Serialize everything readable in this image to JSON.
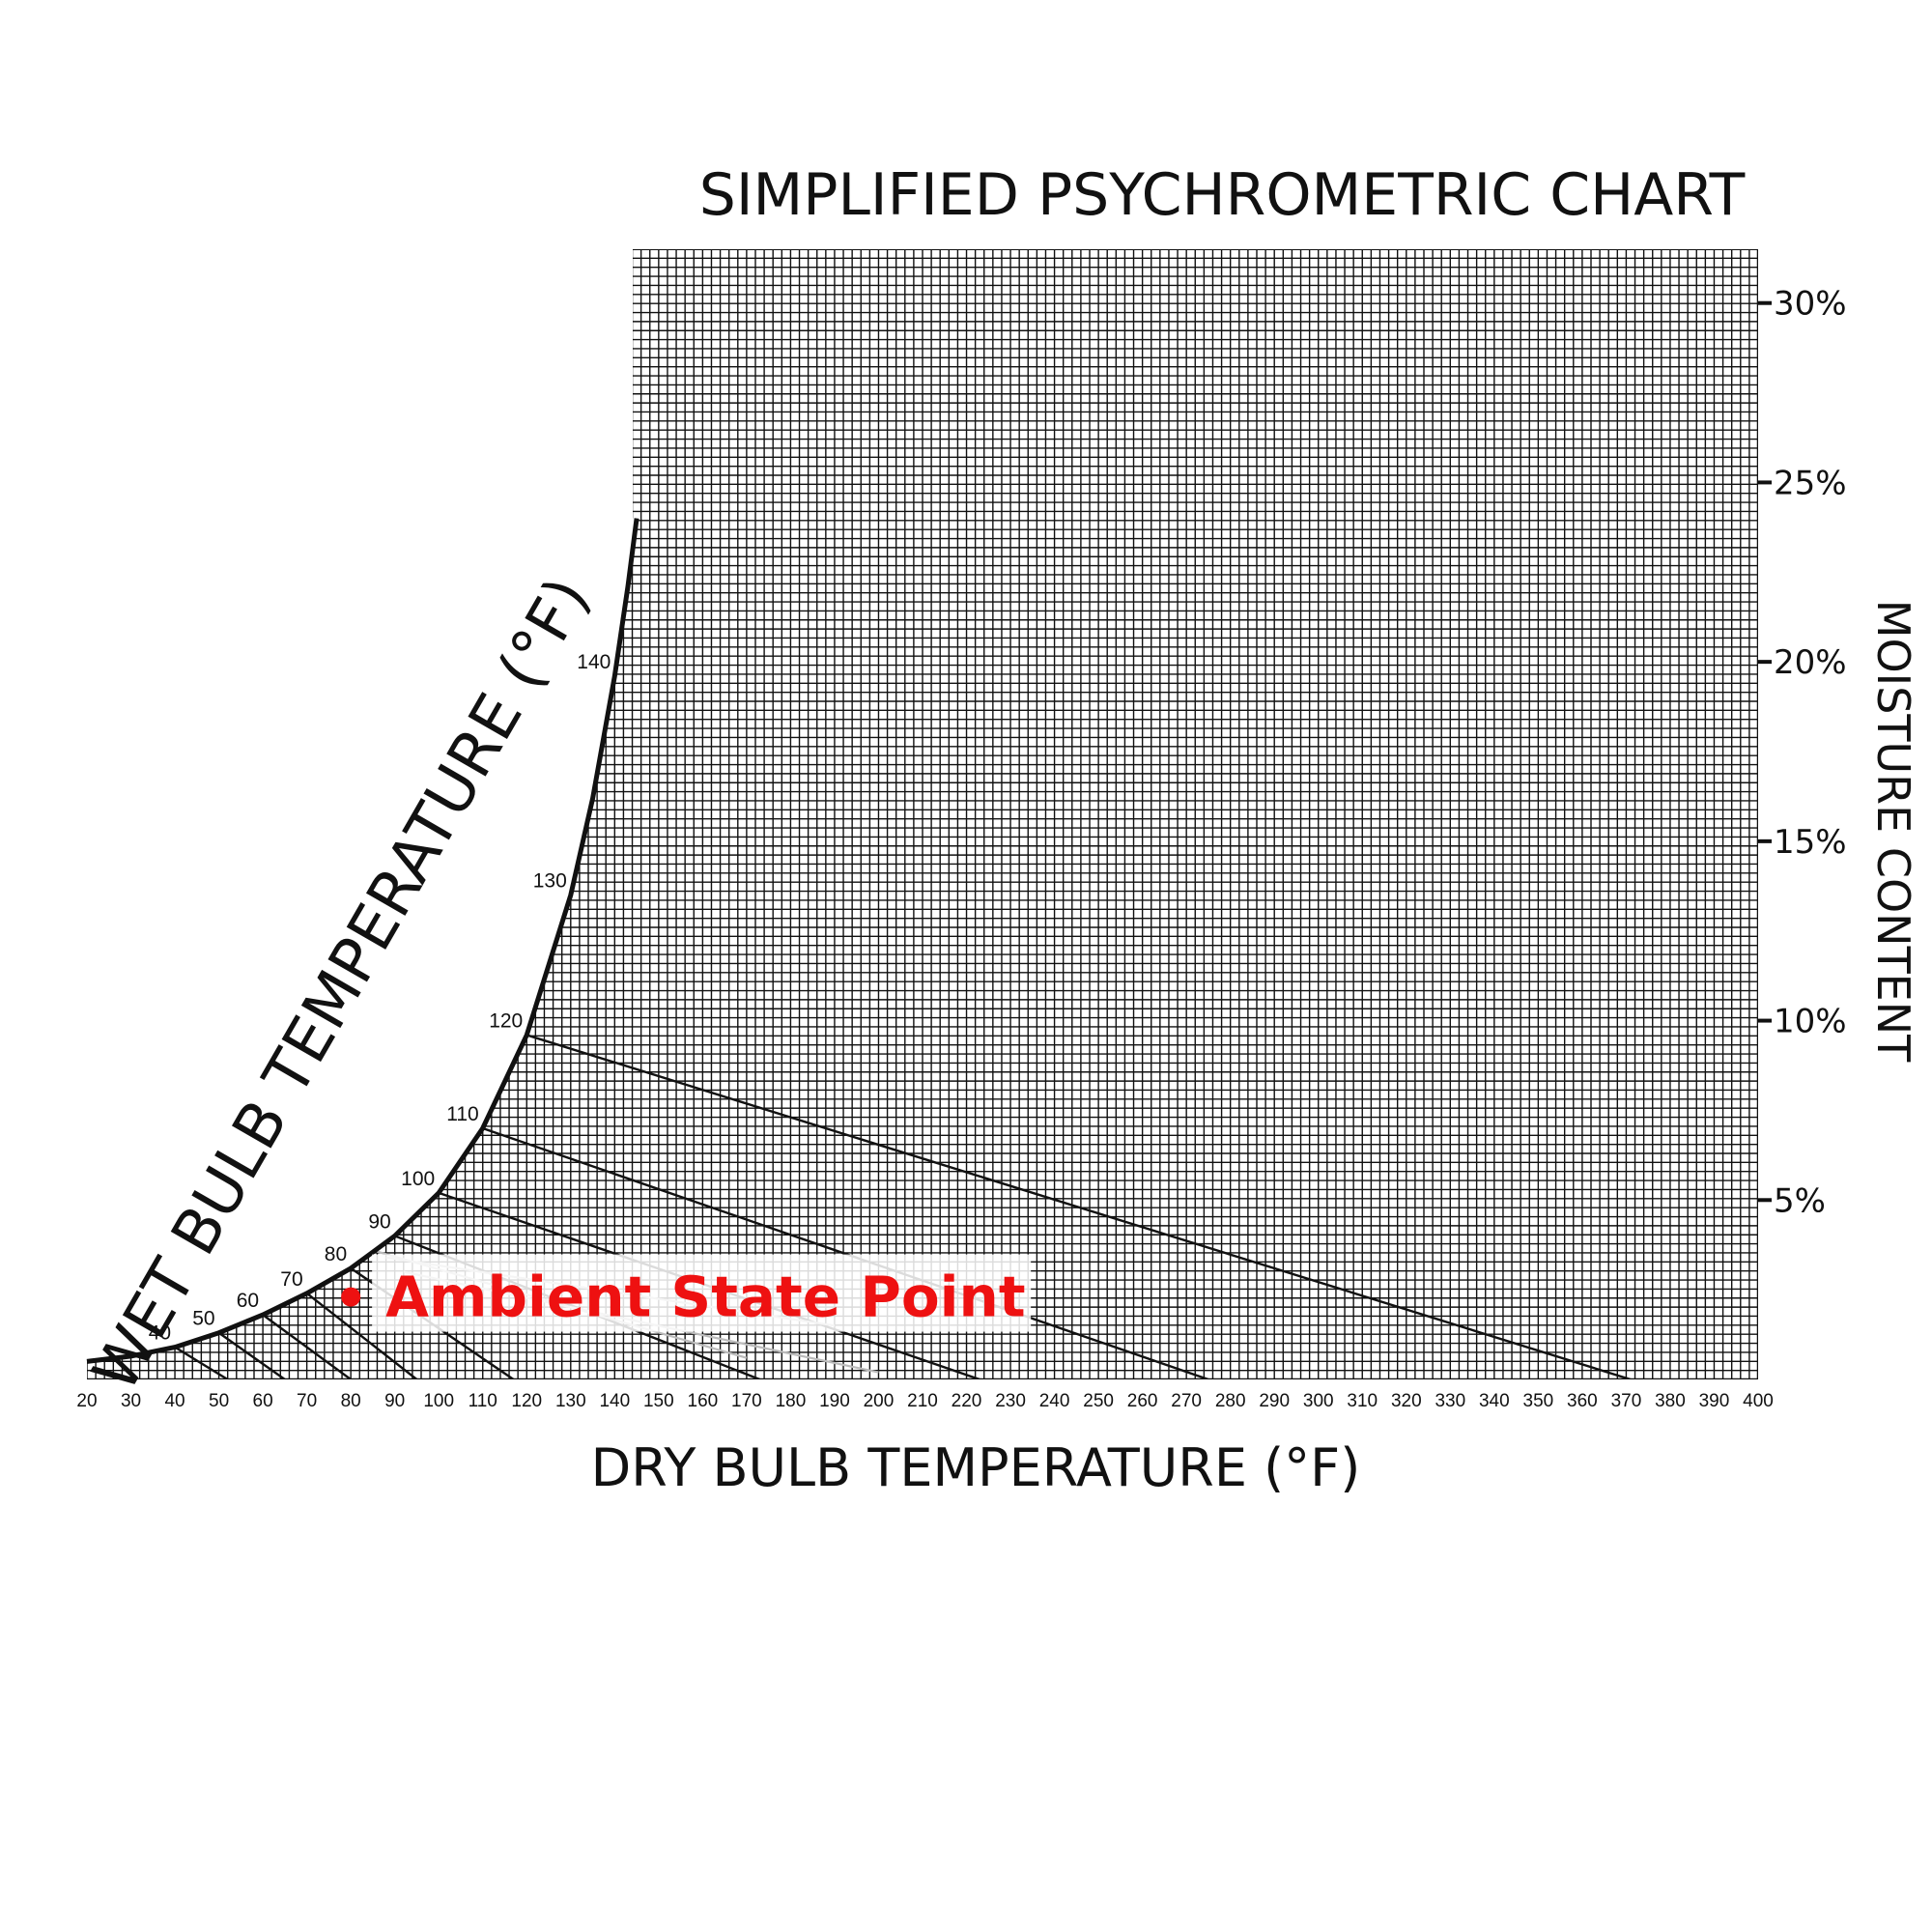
{
  "chart_data": {
    "type": "line",
    "title": "SIMPLIFIED PSYCHROMETRIC CHART",
    "xlabel": "DRY BULB TEMPERATURE (°F)",
    "ylabel": "MOISTURE CONTENT",
    "curve_label": "WET BULB TEMPERATURE (°F)",
    "xlim": [
      20,
      400
    ],
    "ylim": [
      0,
      31.5
    ],
    "grid": true,
    "x_ticks": [
      "20",
      "30",
      "40",
      "50",
      "60",
      "70",
      "80",
      "90",
      "100",
      "110",
      "120",
      "130",
      "140",
      "150",
      "160",
      "170",
      "180",
      "190",
      "200",
      "210",
      "220",
      "230",
      "240",
      "250",
      "260",
      "270",
      "280",
      "290",
      "300",
      "310",
      "320",
      "330",
      "340",
      "350",
      "360",
      "370",
      "380",
      "390",
      "400"
    ],
    "y_ticks": [
      {
        "value": 5,
        "label": "5%"
      },
      {
        "value": 10,
        "label": "10%"
      },
      {
        "value": 15,
        "label": "15%"
      },
      {
        "value": 20,
        "label": "20%"
      },
      {
        "value": 25,
        "label": "25%"
      },
      {
        "value": 30,
        "label": "30%"
      }
    ],
    "saturation_curve": [
      {
        "x": 20,
        "y": 0.5
      },
      {
        "x": 30,
        "y": 0.65
      },
      {
        "x": 40,
        "y": 0.9
      },
      {
        "x": 50,
        "y": 1.3
      },
      {
        "x": 60,
        "y": 1.8
      },
      {
        "x": 70,
        "y": 2.4
      },
      {
        "x": 80,
        "y": 3.1
      },
      {
        "x": 90,
        "y": 4.0
      },
      {
        "x": 100,
        "y": 5.2
      },
      {
        "x": 110,
        "y": 7.0
      },
      {
        "x": 120,
        "y": 9.6
      },
      {
        "x": 130,
        "y": 13.5
      },
      {
        "x": 135,
        "y": 16.2
      },
      {
        "x": 140,
        "y": 19.6
      },
      {
        "x": 143,
        "y": 22.1
      },
      {
        "x": 145,
        "y": 24.0
      }
    ],
    "wet_bulb_lines": [
      {
        "label": "40",
        "x1": 40,
        "y1": 0.9,
        "x2": 52,
        "y2": 0
      },
      {
        "label": "50",
        "x1": 50,
        "y1": 1.3,
        "x2": 65,
        "y2": 0
      },
      {
        "label": "60",
        "x1": 60,
        "y1": 1.8,
        "x2": 80,
        "y2": 0
      },
      {
        "label": "70",
        "x1": 70,
        "y1": 2.4,
        "x2": 95,
        "y2": 0
      },
      {
        "label": "80",
        "x1": 80,
        "y1": 3.1,
        "x2": 117,
        "y2": 0
      },
      {
        "label": "90",
        "x1": 90,
        "y1": 4.0,
        "x2": 173,
        "y2": 0
      },
      {
        "label": "100",
        "x1": 100,
        "y1": 5.2,
        "x2": 223,
        "y2": 0
      },
      {
        "label": "110",
        "x1": 110,
        "y1": 7.0,
        "x2": 275,
        "y2": 0
      },
      {
        "label": "120",
        "x1": 120,
        "y1": 9.6,
        "x2": 371,
        "y2": 0
      },
      {
        "label": "130",
        "x1": 130,
        "y1": 13.5
      },
      {
        "label": "140",
        "x1": 140,
        "y1": 19.6
      }
    ],
    "annotation": {
      "label": "Ambient State Point",
      "x": 80,
      "y": 2.3,
      "color": "#ee1111"
    }
  }
}
